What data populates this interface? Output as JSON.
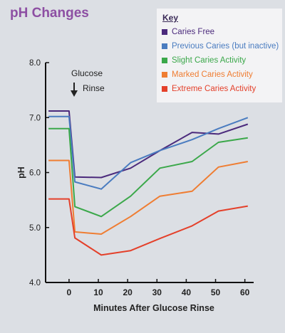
{
  "title": "pH Changes",
  "key": {
    "title": "Key"
  },
  "annotation": {
    "line1": "Glucose",
    "line2": "Rinse"
  },
  "chart_data": {
    "type": "line",
    "xlabel": "Minutes After Glucose Rinse",
    "ylabel": "pH",
    "xlim": [
      -8,
      63
    ],
    "ylim": [
      4.0,
      8.0
    ],
    "xticks": [
      0,
      10,
      20,
      30,
      40,
      50,
      60
    ],
    "yticks": [
      4.0,
      5.0,
      6.0,
      7.0,
      8.0
    ],
    "yticklabels": [
      "4.0",
      "5.0",
      "6.0",
      "7.0",
      "8.0"
    ],
    "legend_position": "top-right",
    "series": [
      {
        "name": "Caries Free",
        "color": "#4b2a7c",
        "x": [
          -7,
          0,
          2,
          11,
          21,
          31,
          42,
          51,
          61
        ],
        "y": [
          7.12,
          7.12,
          5.92,
          5.91,
          6.08,
          6.4,
          6.73,
          6.7,
          6.88
        ]
      },
      {
        "name": "Previous Caries (but inactive)",
        "color": "#4a7cc0",
        "x": [
          -7,
          0,
          2,
          11,
          21,
          31,
          42,
          51,
          61
        ],
        "y": [
          7.02,
          7.02,
          5.83,
          5.7,
          6.18,
          6.4,
          6.6,
          6.8,
          7.0
        ]
      },
      {
        "name": "Slight Caries Activity",
        "color": "#3ba84a",
        "x": [
          -7,
          0,
          2,
          11,
          21,
          31,
          42,
          51,
          61
        ],
        "y": [
          6.8,
          6.8,
          5.38,
          5.2,
          5.57,
          6.08,
          6.2,
          6.55,
          6.63
        ]
      },
      {
        "name": "Marked Caries Activity",
        "color": "#ef7d32",
        "x": [
          -7,
          0,
          2,
          11,
          21,
          31,
          42,
          51,
          61
        ],
        "y": [
          6.22,
          6.22,
          4.92,
          4.88,
          5.2,
          5.57,
          5.66,
          6.1,
          6.2
        ]
      },
      {
        "name": "Extreme Caries Activity",
        "color": "#e4402a",
        "x": [
          -7,
          0,
          2,
          11,
          21,
          31,
          42,
          51,
          61
        ],
        "y": [
          5.52,
          5.52,
          4.81,
          4.5,
          4.58,
          4.8,
          5.03,
          5.3,
          5.39
        ]
      }
    ]
  }
}
